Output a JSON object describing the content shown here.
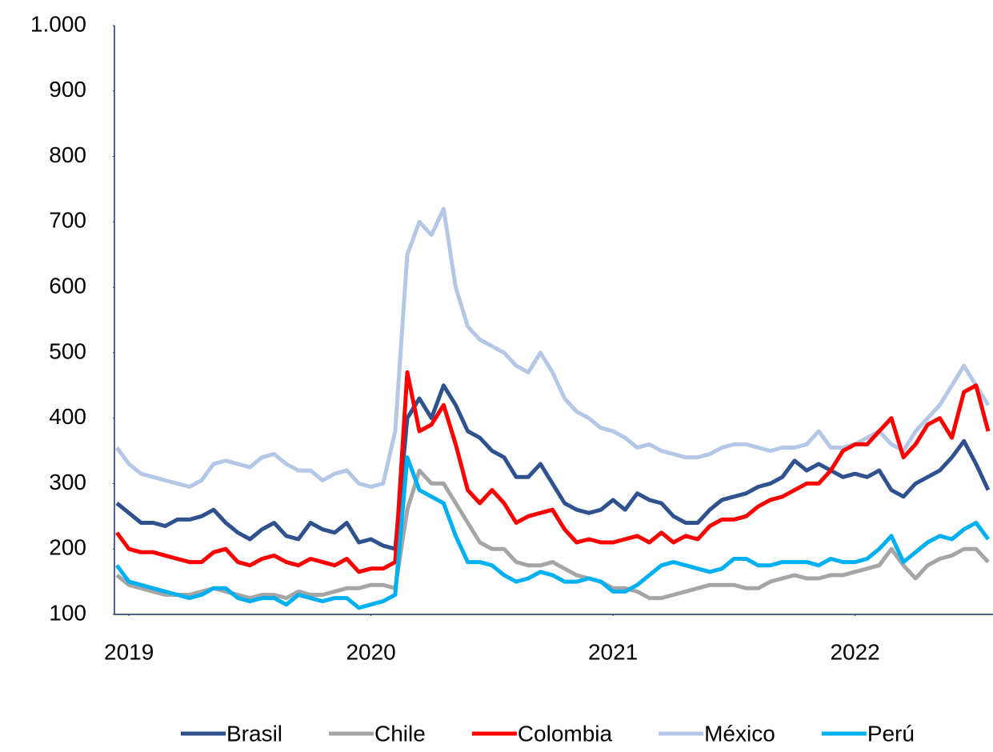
{
  "chart_data": {
    "type": "line",
    "x": [
      2018.95,
      2019.0,
      2019.05,
      2019.1,
      2019.15,
      2019.2,
      2019.25,
      2019.3,
      2019.35,
      2019.4,
      2019.45,
      2019.5,
      2019.55,
      2019.6,
      2019.65,
      2019.7,
      2019.75,
      2019.8,
      2019.85,
      2019.9,
      2019.95,
      2020.0,
      2020.05,
      2020.1,
      2020.15,
      2020.2,
      2020.25,
      2020.3,
      2020.35,
      2020.4,
      2020.45,
      2020.5,
      2020.55,
      2020.6,
      2020.65,
      2020.7,
      2020.75,
      2020.8,
      2020.85,
      2020.9,
      2020.95,
      2021.0,
      2021.05,
      2021.1,
      2021.15,
      2021.2,
      2021.25,
      2021.3,
      2021.35,
      2021.4,
      2021.45,
      2021.5,
      2021.55,
      2021.6,
      2021.65,
      2021.7,
      2021.75,
      2021.8,
      2021.85,
      2021.9,
      2021.95,
      2022.0,
      2022.05,
      2022.1,
      2022.15,
      2022.2,
      2022.25,
      2022.3,
      2022.35,
      2022.4,
      2022.45,
      2022.5,
      2022.55
    ],
    "series": [
      {
        "name": "Brasil",
        "color": "#2f528f",
        "values": [
          270,
          255,
          240,
          240,
          235,
          245,
          245,
          250,
          260,
          240,
          225,
          215,
          230,
          240,
          220,
          215,
          240,
          230,
          225,
          240,
          210,
          215,
          205,
          200,
          400,
          430,
          400,
          450,
          420,
          380,
          370,
          350,
          340,
          310,
          310,
          330,
          300,
          270,
          260,
          255,
          260,
          275,
          260,
          285,
          275,
          270,
          250,
          240,
          240,
          260,
          275,
          280,
          285,
          295,
          300,
          310,
          335,
          320,
          330,
          320,
          310,
          315,
          310,
          320,
          290,
          280,
          300,
          310,
          320,
          340,
          365,
          330,
          290
        ]
      },
      {
        "name": "Chile",
        "color": "#a5a5a5",
        "values": [
          160,
          145,
          140,
          135,
          130,
          130,
          130,
          135,
          140,
          135,
          130,
          125,
          130,
          130,
          125,
          135,
          130,
          130,
          135,
          140,
          140,
          145,
          145,
          140,
          260,
          320,
          300,
          300,
          270,
          240,
          210,
          200,
          200,
          180,
          175,
          175,
          180,
          170,
          160,
          155,
          150,
          140,
          140,
          135,
          125,
          125,
          130,
          135,
          140,
          145,
          145,
          145,
          140,
          140,
          150,
          155,
          160,
          155,
          155,
          160,
          160,
          165,
          170,
          175,
          200,
          175,
          155,
          175,
          185,
          190,
          200,
          200,
          180
        ]
      },
      {
        "name": "Colombia",
        "color": "#ff0000",
        "values": [
          225,
          200,
          195,
          195,
          190,
          185,
          180,
          180,
          195,
          200,
          180,
          175,
          185,
          190,
          180,
          175,
          185,
          180,
          175,
          185,
          165,
          170,
          170,
          180,
          470,
          380,
          390,
          420,
          360,
          290,
          270,
          290,
          270,
          240,
          250,
          255,
          260,
          230,
          210,
          215,
          210,
          210,
          215,
          220,
          210,
          225,
          210,
          220,
          215,
          235,
          245,
          245,
          250,
          265,
          275,
          280,
          290,
          300,
          300,
          320,
          350,
          360,
          360,
          380,
          400,
          340,
          360,
          390,
          400,
          370,
          440,
          450,
          380
        ]
      },
      {
        "name": "México",
        "color": "#b4c7e7",
        "values": [
          355,
          330,
          315,
          310,
          305,
          300,
          295,
          305,
          330,
          335,
          330,
          325,
          340,
          345,
          330,
          320,
          320,
          305,
          315,
          320,
          300,
          295,
          300,
          380,
          650,
          700,
          680,
          720,
          600,
          540,
          520,
          510,
          500,
          480,
          470,
          500,
          470,
          430,
          410,
          400,
          385,
          380,
          370,
          355,
          360,
          350,
          345,
          340,
          340,
          345,
          355,
          360,
          360,
          355,
          350,
          355,
          355,
          360,
          380,
          355,
          355,
          360,
          370,
          380,
          360,
          350,
          380,
          400,
          420,
          450,
          480,
          450,
          420
        ]
      },
      {
        "name": "Perú",
        "color": "#00b0f0",
        "values": [
          175,
          150,
          145,
          140,
          135,
          130,
          125,
          130,
          140,
          140,
          125,
          120,
          125,
          125,
          115,
          130,
          125,
          120,
          125,
          125,
          110,
          115,
          120,
          130,
          340,
          290,
          280,
          270,
          220,
          180,
          180,
          175,
          160,
          150,
          155,
          165,
          160,
          150,
          150,
          155,
          150,
          135,
          135,
          145,
          160,
          175,
          180,
          175,
          170,
          165,
          170,
          185,
          185,
          175,
          175,
          180,
          180,
          180,
          175,
          185,
          180,
          180,
          185,
          200,
          220,
          180,
          195,
          210,
          220,
          215,
          230,
          240,
          215
        ]
      }
    ],
    "xlim": [
      2018.94,
      2022.57
    ],
    "xticks": [
      2019,
      2020,
      2021,
      2022
    ],
    "ylim": [
      100,
      1000
    ],
    "yticks": [
      100,
      200,
      300,
      400,
      500,
      600,
      700,
      800,
      900,
      {
        "value": 1000,
        "label": "1.000"
      }
    ],
    "grid": false,
    "legend": "bottom"
  }
}
